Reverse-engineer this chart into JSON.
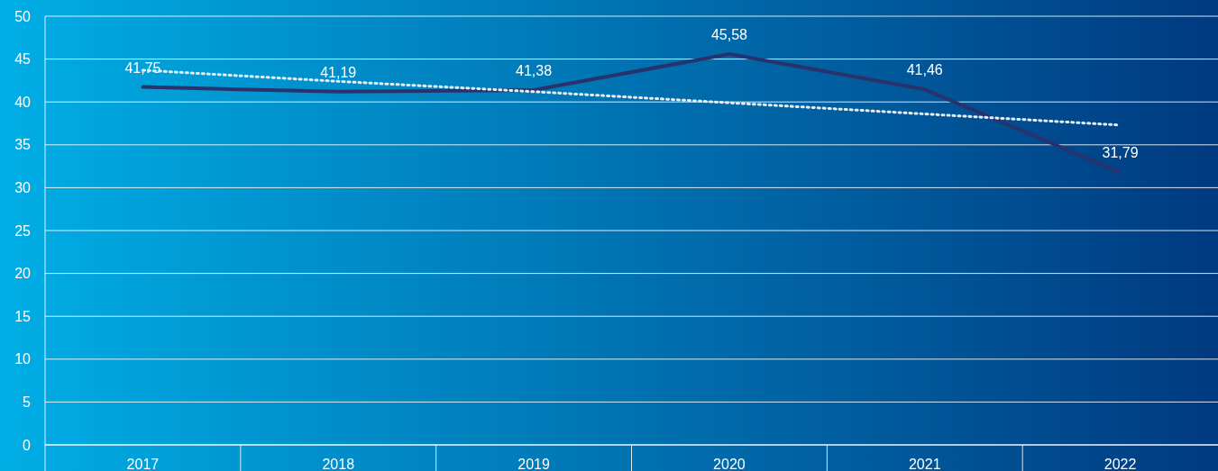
{
  "chart_data": {
    "type": "line",
    "categories": [
      "2017",
      "2018",
      "2019",
      "2020",
      "2021",
      "2022"
    ],
    "series": [
      {
        "color": "#28336e",
        "values": [
          41.75,
          41.19,
          41.38,
          45.58,
          41.46,
          31.79
        ],
        "value_labels": [
          "41,75",
          "41,19",
          "41,38",
          "45,58",
          "41,46",
          "31,79"
        ],
        "line_style": "solid"
      },
      {
        "color": "#e6eef6",
        "values": [
          43.7,
          42.4,
          41.2,
          39.9,
          38.6,
          37.3
        ],
        "line_style": "dotted"
      }
    ],
    "ylim": [
      0,
      50
    ],
    "yticks": [
      0,
      5,
      10,
      15,
      20,
      25,
      30,
      35,
      40,
      45,
      50
    ],
    "grid": "y"
  }
}
